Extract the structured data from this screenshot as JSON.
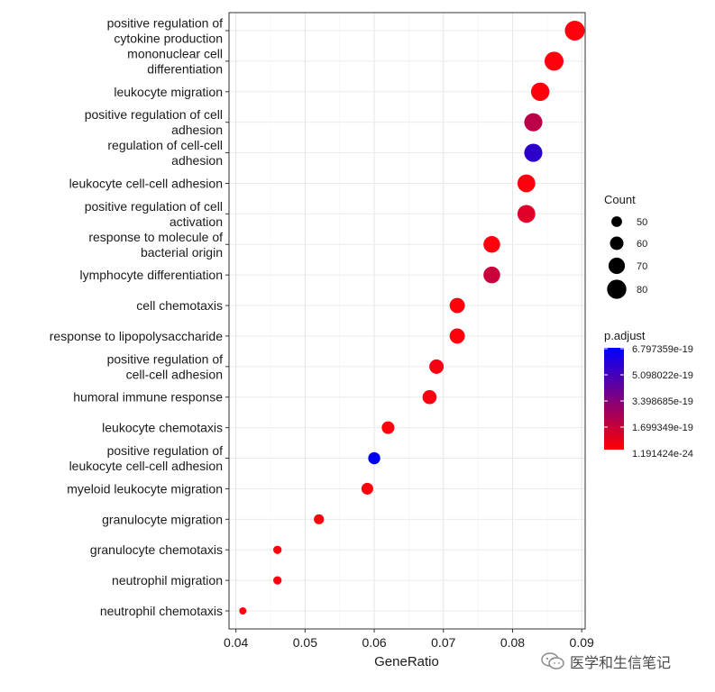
{
  "chart_data": {
    "type": "scatter",
    "xlabel": "GeneRatio",
    "ylabel": "",
    "xlim": [
      0.039,
      0.0905
    ],
    "x_ticks": [
      "0.04",
      "0.05",
      "0.06",
      "0.07",
      "0.08",
      "0.09"
    ],
    "x_tick_values": [
      0.04,
      0.05,
      0.06,
      0.07,
      0.08,
      0.09
    ],
    "grid": true,
    "legend_position": "right",
    "size_legend": {
      "title": "Count",
      "entries": [
        {
          "label": "50",
          "value": 50
        },
        {
          "label": "60",
          "value": 60
        },
        {
          "label": "70",
          "value": 70
        },
        {
          "label": "80",
          "value": 80
        }
      ]
    },
    "color_legend": {
      "title": "p.adjust",
      "labels": [
        "6.797359e-19",
        "5.098022e-19",
        "3.398685e-19",
        "1.699349e-19",
        "1.191424e-24"
      ],
      "low_color": "#ff0000",
      "high_color": "#0000ff"
    },
    "points": [
      {
        "term": "positive regulation of cytokine production",
        "label_lines": [
          "positive regulation of",
          "cytokine production"
        ],
        "gene_ratio": 0.089,
        "count": 82,
        "p_adjust": 1e-23
      },
      {
        "term": "mononuclear cell differentiation",
        "label_lines": [
          "mononuclear cell",
          "differentiation"
        ],
        "gene_ratio": 0.086,
        "count": 79,
        "p_adjust": 1e-22
      },
      {
        "term": "leukocyte migration",
        "label_lines": [
          "leukocyte migration"
        ],
        "gene_ratio": 0.084,
        "count": 77,
        "p_adjust": 2e-22
      },
      {
        "term": "positive regulation of cell adhesion",
        "label_lines": [
          "positive regulation of cell",
          "adhesion"
        ],
        "gene_ratio": 0.083,
        "count": 76,
        "p_adjust": 1.8e-19
      },
      {
        "term": "regulation of cell-cell adhesion",
        "label_lines": [
          "regulation of cell-cell",
          "adhesion"
        ],
        "gene_ratio": 0.083,
        "count": 76,
        "p_adjust": 5.6e-19
      },
      {
        "term": "leukocyte cell-cell adhesion",
        "label_lines": [
          "leukocyte cell-cell adhesion"
        ],
        "gene_ratio": 0.082,
        "count": 75,
        "p_adjust": 3e-21
      },
      {
        "term": "positive regulation of cell activation",
        "label_lines": [
          "positive regulation of cell",
          "activation"
        ],
        "gene_ratio": 0.082,
        "count": 75,
        "p_adjust": 8e-20
      },
      {
        "term": "response to molecule of bacterial origin",
        "label_lines": [
          "response to molecule of",
          "bacterial origin"
        ],
        "gene_ratio": 0.077,
        "count": 71,
        "p_adjust": 1e-21
      },
      {
        "term": "lymphocyte differentiation",
        "label_lines": [
          "lymphocyte differentiation"
        ],
        "gene_ratio": 0.077,
        "count": 71,
        "p_adjust": 1.4e-19
      },
      {
        "term": "cell chemotaxis",
        "label_lines": [
          "cell chemotaxis"
        ],
        "gene_ratio": 0.072,
        "count": 66,
        "p_adjust": 1e-22
      },
      {
        "term": "response to lipopolysaccharide",
        "label_lines": [
          "response to lipopolysaccharide"
        ],
        "gene_ratio": 0.072,
        "count": 66,
        "p_adjust": 1e-21
      },
      {
        "term": "positive regulation of cell-cell adhesion",
        "label_lines": [
          "positive regulation of",
          "cell-cell adhesion"
        ],
        "gene_ratio": 0.069,
        "count": 63,
        "p_adjust": 2e-20
      },
      {
        "term": "humoral immune response",
        "label_lines": [
          "humoral immune response"
        ],
        "gene_ratio": 0.068,
        "count": 62,
        "p_adjust": 1e-20
      },
      {
        "term": "leukocyte chemotaxis",
        "label_lines": [
          "leukocyte chemotaxis"
        ],
        "gene_ratio": 0.062,
        "count": 57,
        "p_adjust": 1e-22
      },
      {
        "term": "positive regulation of leukocyte cell-cell adhesion",
        "label_lines": [
          "positive regulation of",
          "leukocyte cell-cell adhesion"
        ],
        "gene_ratio": 0.06,
        "count": 55,
        "p_adjust": 6.8e-19
      },
      {
        "term": "myeloid leukocyte migration",
        "label_lines": [
          "myeloid leukocyte migration"
        ],
        "gene_ratio": 0.059,
        "count": 54,
        "p_adjust": 1e-21
      },
      {
        "term": "granulocyte migration",
        "label_lines": [
          "granulocyte migration"
        ],
        "gene_ratio": 0.052,
        "count": 48,
        "p_adjust": 1e-22
      },
      {
        "term": "granulocyte chemotaxis",
        "label_lines": [
          "granulocyte chemotaxis"
        ],
        "gene_ratio": 0.046,
        "count": 42,
        "p_adjust": 1e-22
      },
      {
        "term": "neutrophil migration",
        "label_lines": [
          "neutrophil migration"
        ],
        "gene_ratio": 0.046,
        "count": 42,
        "p_adjust": 1e-22
      },
      {
        "term": "neutrophil chemotaxis",
        "label_lines": [
          "neutrophil chemotaxis"
        ],
        "gene_ratio": 0.041,
        "count": 38,
        "p_adjust": 1e-22
      }
    ]
  },
  "watermark": {
    "text": "医学和生信笔记",
    "icon": "wechat-icon"
  }
}
